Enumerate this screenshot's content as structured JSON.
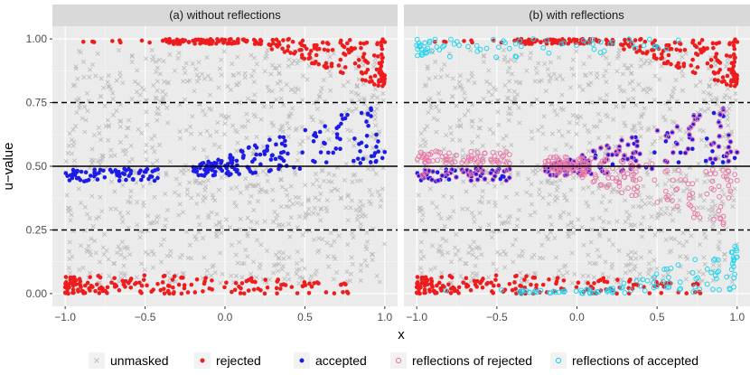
{
  "chart_data": {
    "type": "scatter",
    "ylabel": "u−value",
    "xlabel": "x",
    "xlim": [
      -1.08,
      1.08
    ],
    "ylim": [
      -0.05,
      1.05
    ],
    "x_ticks": [
      -1.0,
      -0.5,
      0.0,
      0.5,
      1.0
    ],
    "x_tick_labels": [
      "−1.0",
      "−0.5",
      "0.0",
      "0.5",
      "1.0"
    ],
    "y_ticks": [
      0.0,
      0.25,
      0.5,
      0.75,
      1.0
    ],
    "y_tick_labels": [
      "0.00",
      "0.25",
      "0.50",
      "0.75",
      "1.00"
    ],
    "reference_lines": [
      {
        "y": 0.5,
        "style": "solid"
      },
      {
        "y": 0.25,
        "style": "dashed"
      },
      {
        "y": 0.75,
        "style": "dashed"
      }
    ],
    "panels": [
      {
        "title": "(a) without reflections",
        "series": [
          "unmasked",
          "rejected",
          "accepted"
        ]
      },
      {
        "title": "(b) with reflections",
        "series": [
          "unmasked",
          "rejected",
          "accepted",
          "reflections of rejected",
          "reflections of accepted"
        ]
      }
    ],
    "legend": {
      "position": "bottom",
      "entries": [
        {
          "label": "unmasked",
          "color": "#bdbdbd",
          "shape": "cross"
        },
        {
          "label": "rejected",
          "color": "#ee1c1c",
          "shape": "dot"
        },
        {
          "label": "accepted",
          "color": "#1c1ce6",
          "shape": "dot"
        },
        {
          "label": "reflections of rejected",
          "color": "#e879a8",
          "shape": "ring"
        },
        {
          "label": "reflections of accepted",
          "color": "#22d3ee",
          "shape": "ring"
        }
      ]
    },
    "series_description": {
      "unmasked": "uniform over x in [-1,1], u in [0.04,0.96], approx 900 points",
      "rejected": "u near 0 (0.0-0.1) for x<0.8 and u near 1 (0.8-1.0) mostly for x>0.3",
      "accepted": "u in band 0.4-0.7 rising with x",
      "reflections of rejected": "mirror of accepted about u=0.5",
      "reflections of accepted": "mirror of rejected about u=0.5"
    },
    "grid": true
  }
}
